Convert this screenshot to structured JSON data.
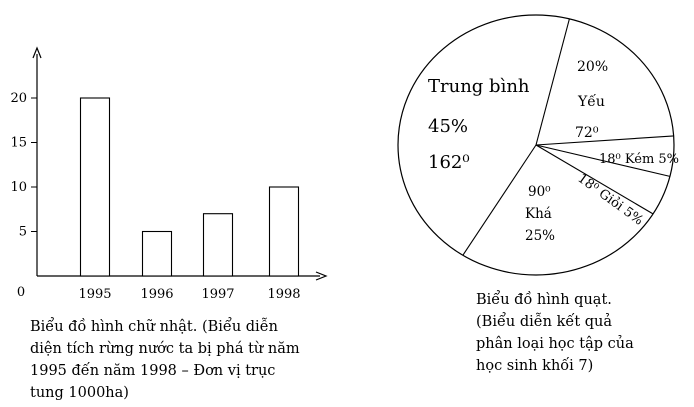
{
  "chart_data": [
    {
      "type": "bar",
      "categories": [
        "1995",
        "1996",
        "1997",
        "1998"
      ],
      "values": [
        20,
        5,
        7,
        10
      ],
      "y_ticks": [
        5,
        10,
        15,
        20
      ],
      "origin_label": "0",
      "ylim": [
        0,
        27
      ],
      "caption": "Biểu đồ hình chữ nhật. (Biểu diễn\ndiện tích rừng nước ta bị phá từ năm\n1995 đến năm 1998 – Đơn vị trục\ntung 1000ha)"
    },
    {
      "type": "pie",
      "slices": [
        {
          "name": "Yếu",
          "percent": "20%",
          "degrees": 72,
          "degree_text": "72⁰"
        },
        {
          "name": "Kém",
          "percent": "5%",
          "degrees": 18,
          "degree_text": "18⁰"
        },
        {
          "name": "Giỏi",
          "percent": "5%",
          "degrees": 18,
          "degree_text": "18⁰"
        },
        {
          "name": "Khá",
          "percent": "25%",
          "degrees": 90,
          "degree_text": "90⁰"
        },
        {
          "name": "Trung bình",
          "percent": "45%",
          "degrees": 162,
          "degree_text": "162⁰"
        }
      ],
      "caption": "Biểu đồ hình quạt.\n(Biểu diễn kết quả\nphân loại học tập của\nhọc sinh khối 7)"
    }
  ]
}
